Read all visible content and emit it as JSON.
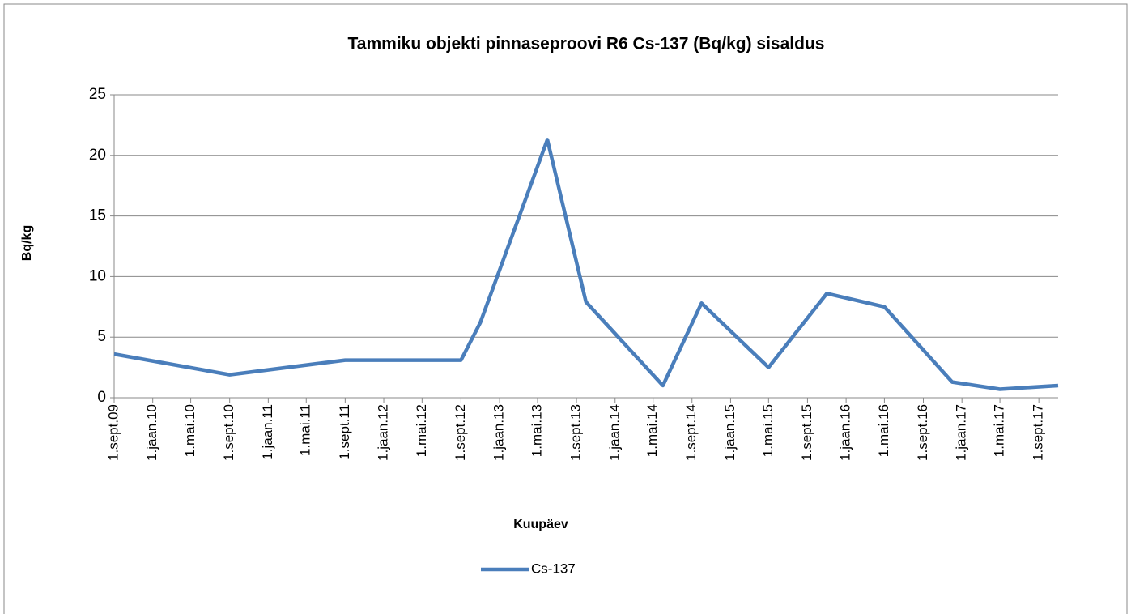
{
  "chart_data": {
    "type": "line",
    "title": "Tammiku objekti pinnaseproovi R6 Cs-137 (Bq/kg) sisaldus",
    "x_label": "Kuupäev",
    "y_label": "Bq/kg",
    "x": [
      "2009-09-01",
      "2010-09-01",
      "2011-09-01",
      "2012-09-01",
      "2012-11-01",
      "2013-06-01",
      "2013-10-01",
      "2014-06-01",
      "2014-10-01",
      "2015-05-01",
      "2015-11-01",
      "2016-05-01",
      "2016-12-01",
      "2017-05-01",
      "2017-11-01"
    ],
    "series": [
      {
        "name": "Cs-137",
        "color": "#4a7ebb",
        "values": [
          3.6,
          1.9,
          3.1,
          3.1,
          6.2,
          21.3,
          7.9,
          1.0,
          7.8,
          2.5,
          8.6,
          7.5,
          1.3,
          0.7,
          1.0
        ]
      }
    ],
    "xlim": [
      "2009-09-01",
      "2017-11-01"
    ],
    "xticks": [
      {
        "value": "2009-09-01",
        "label": "1.sept.09"
      },
      {
        "value": "2010-01-01",
        "label": "1.jaan.10"
      },
      {
        "value": "2010-05-01",
        "label": "1.mai.10"
      },
      {
        "value": "2010-09-01",
        "label": "1.sept.10"
      },
      {
        "value": "2011-01-01",
        "label": "1.jaan.11"
      },
      {
        "value": "2011-05-01",
        "label": "1.mai.11"
      },
      {
        "value": "2011-09-01",
        "label": "1.sept.11"
      },
      {
        "value": "2012-01-01",
        "label": "1.jaan.12"
      },
      {
        "value": "2012-05-01",
        "label": "1.mai.12"
      },
      {
        "value": "2012-09-01",
        "label": "1.sept.12"
      },
      {
        "value": "2013-01-01",
        "label": "1.jaan.13"
      },
      {
        "value": "2013-05-01",
        "label": "1.mai.13"
      },
      {
        "value": "2013-09-01",
        "label": "1.sept.13"
      },
      {
        "value": "2014-01-01",
        "label": "1.jaan.14"
      },
      {
        "value": "2014-05-01",
        "label": "1.mai.14"
      },
      {
        "value": "2014-09-01",
        "label": "1.sept.14"
      },
      {
        "value": "2015-01-01",
        "label": "1.jaan.15"
      },
      {
        "value": "2015-05-01",
        "label": "1.mai.15"
      },
      {
        "value": "2015-09-01",
        "label": "1.sept.15"
      },
      {
        "value": "2016-01-01",
        "label": "1.jaan.16"
      },
      {
        "value": "2016-05-01",
        "label": "1.mai.16"
      },
      {
        "value": "2016-09-01",
        "label": "1.sept.16"
      },
      {
        "value": "2017-01-01",
        "label": "1.jaan.17"
      },
      {
        "value": "2017-05-01",
        "label": "1.mai.17"
      },
      {
        "value": "2017-09-01",
        "label": "1.sept.17"
      }
    ],
    "ylim": [
      0,
      25
    ],
    "yticks": [
      0,
      5,
      10,
      15,
      20,
      25
    ],
    "grid": true,
    "legend": "bottom"
  }
}
